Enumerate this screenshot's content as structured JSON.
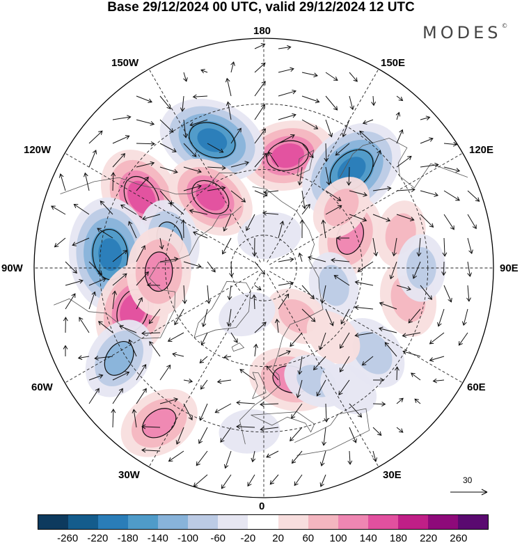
{
  "title": "Base 29/12/2024 00 UTC, valid 29/12/2024 12 UTC",
  "brand": "MODES",
  "brand_mark": "©",
  "longitude_labels": {
    "lon_180": "180",
    "lon_150w": "150W",
    "lon_150e": "150E",
    "lon_120w": "120W",
    "lon_120e": "120E",
    "lon_90w": "90W",
    "lon_90e": "90E",
    "lon_60w": "60W",
    "lon_60e": "60E",
    "lon_30w": "30W",
    "lon_30e": "30E",
    "lon_0": "0"
  },
  "reference_vector": {
    "label": "30"
  },
  "colorbar": {
    "colors": [
      "#0d3a5e",
      "#145c8c",
      "#2a7db8",
      "#4f9bc9",
      "#88b3da",
      "#bccbe5",
      "#e6e6f2",
      "#ffffff",
      "#f8dede",
      "#f4b6c0",
      "#ef86b2",
      "#e2509f",
      "#c01f87",
      "#8e0a7a",
      "#5a0a70"
    ],
    "ticks": [
      "-260",
      "-220",
      "-180",
      "-140",
      "-100",
      "-60",
      "-20",
      "20",
      "60",
      "100",
      "140",
      "180",
      "220",
      "260"
    ]
  },
  "anomalies": [
    {
      "lat": 55,
      "lon": 168,
      "value": 150
    },
    {
      "lat": 48,
      "lon": -158,
      "value": -190
    },
    {
      "lat": 50,
      "lon": 138,
      "value": -200
    },
    {
      "lat": 47,
      "lon": -120,
      "value": 170
    },
    {
      "lat": 63,
      "lon": -143,
      "value": 140
    },
    {
      "lat": 60,
      "lon": -107,
      "value": -100
    },
    {
      "lat": 43,
      "lon": -95,
      "value": -210
    },
    {
      "lat": 48,
      "lon": -72,
      "value": 160
    },
    {
      "lat": 58,
      "lon": -88,
      "value": 130
    },
    {
      "lat": 38,
      "lon": -58,
      "value": -110
    },
    {
      "lat": 33,
      "lon": -34,
      "value": 110
    },
    {
      "lat": 55,
      "lon": 14,
      "value": 120
    },
    {
      "lat": 62,
      "lon": 110,
      "value": 110
    },
    {
      "lat": 60,
      "lon": 128,
      "value": 60
    },
    {
      "lat": 47,
      "lon": 104,
      "value": 60
    },
    {
      "lat": 45,
      "lon": 78,
      "value": 90
    },
    {
      "lat": 48,
      "lon": 52,
      "value": -90
    },
    {
      "lat": 68,
      "lon": 76,
      "value": -60
    },
    {
      "lat": 42,
      "lon": 90,
      "value": -60
    },
    {
      "lat": 72,
      "lon": 35,
      "value": 60
    },
    {
      "lat": 60,
      "lon": 45,
      "value": 40
    },
    {
      "lat": 80,
      "lon": 170,
      "value": -50
    },
    {
      "lat": 52,
      "lon": 25,
      "value": -60
    },
    {
      "lat": 75,
      "lon": -20,
      "value": -30
    },
    {
      "lat": 40,
      "lon": -5,
      "value": -40
    },
    {
      "lat": 45,
      "lon": 35,
      "value": -40
    }
  ]
}
